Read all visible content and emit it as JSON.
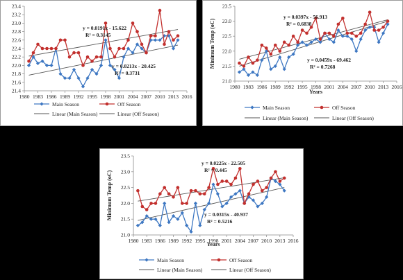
{
  "colors": {
    "main": "#3d77c2",
    "off": "#c2302e",
    "trend_main": "#555555",
    "trend_off": "#555555"
  },
  "chart_data": [
    {
      "type": "line",
      "title": "",
      "xlabel": "",
      "ylabel": "",
      "ylim": [
        21.4,
        23.4
      ],
      "ytick_step": 0.2,
      "xlim": [
        1980,
        2016
      ],
      "xticks": [
        1980,
        1983,
        1986,
        1989,
        1992,
        1995,
        1998,
        2001,
        2004,
        2007,
        2010,
        2013,
        2016
      ],
      "x": [
        1981,
        1982,
        1983,
        1984,
        1985,
        1986,
        1987,
        1988,
        1989,
        1990,
        1991,
        1992,
        1993,
        1994,
        1995,
        1996,
        1997,
        1998,
        1999,
        2000,
        2001,
        2002,
        2003,
        2004,
        2005,
        2006,
        2007,
        2008,
        2009,
        2010,
        2011,
        2012,
        2013,
        2014
      ],
      "series": [
        {
          "name": "Main Season",
          "values": [
            22.0,
            22.2,
            22.05,
            22.1,
            22.0,
            22.0,
            22.4,
            21.8,
            21.7,
            21.7,
            21.9,
            21.7,
            21.5,
            21.7,
            21.9,
            21.8,
            22.0,
            22.6,
            22.0,
            21.9,
            21.7,
            22.2,
            22.4,
            22.3,
            22.5,
            22.4,
            22.3,
            22.6,
            22.6,
            22.6,
            22.7,
            22.7,
            22.4,
            22.6
          ]
        },
        {
          "name": "Off Season",
          "values": [
            22.1,
            22.3,
            22.5,
            22.4,
            22.4,
            22.4,
            22.4,
            22.6,
            22.6,
            22.2,
            22.3,
            22.3,
            22.0,
            22.2,
            22.1,
            22.2,
            22.2,
            23.0,
            22.4,
            22.2,
            22.4,
            22.4,
            22.6,
            23.0,
            22.8,
            22.5,
            22.3,
            22.7,
            22.7,
            23.3,
            22.5,
            22.8,
            22.6,
            22.7
          ]
        }
      ],
      "trendlines": [
        {
          "name": "Linear (Main Season)",
          "equation": "y = 0.0213x - 20.425",
          "r2": "R² = 0.3731",
          "start": [
            1981,
            21.77
          ],
          "end": [
            2014,
            22.48
          ]
        },
        {
          "name": "Linear (Off Season)",
          "equation": "y = 0.0191x - 15.622",
          "r2": "R² = 0.3145",
          "start": [
            1981,
            22.22
          ],
          "end": [
            2014,
            22.85
          ]
        }
      ],
      "legend": [
        "Main Season",
        "Off Season",
        "Linear (Main Season)",
        "Linear (Off Season)"
      ]
    },
    {
      "type": "line",
      "title": "",
      "xlabel": "Years",
      "ylabel": "Minimum Temp (oC)",
      "ylim": [
        21,
        23.5
      ],
      "ytick_step": 0.5,
      "xlim": [
        1980,
        2016
      ],
      "xticks": [
        1980,
        1983,
        1986,
        1989,
        1992,
        1995,
        1998,
        2001,
        2004,
        2007,
        2010,
        2013,
        2016
      ],
      "x": [
        1981,
        1982,
        1983,
        1984,
        1985,
        1986,
        1987,
        1988,
        1989,
        1990,
        1991,
        1992,
        1993,
        1994,
        1995,
        1996,
        1997,
        1998,
        1999,
        2000,
        2001,
        2002,
        2003,
        2004,
        2005,
        2006,
        2007,
        2008,
        2009,
        2010,
        2011,
        2012,
        2013,
        2014
      ],
      "series": [
        {
          "name": "Main Season",
          "values": [
            21.3,
            21.4,
            21.2,
            21.3,
            21.2,
            21.7,
            22.0,
            21.4,
            21.5,
            21.8,
            21.4,
            21.8,
            21.9,
            22.2,
            22.3,
            22.2,
            22.3,
            22.4,
            22.3,
            22.6,
            22.4,
            22.3,
            22.7,
            22.5,
            22.5,
            22.4,
            22.0,
            22.4,
            22.7,
            22.8,
            22.8,
            22.3,
            22.6,
            22.9
          ]
        },
        {
          "name": "Off Season",
          "values": [
            21.6,
            21.5,
            21.8,
            21.6,
            21.7,
            22.2,
            22.1,
            21.9,
            22.2,
            22.0,
            22.3,
            22.2,
            22.5,
            22.3,
            22.7,
            22.6,
            22.8,
            23.1,
            22.4,
            22.6,
            22.6,
            22.5,
            22.9,
            23.1,
            22.6,
            22.6,
            22.5,
            22.6,
            22.9,
            23.3,
            22.7,
            22.7,
            22.8,
            23.0
          ]
        }
      ],
      "trendlines": [
        {
          "name": "Linear (Main Season)",
          "equation": "y = 0.0459x - 69.462",
          "r2": "R² = 0.7268",
          "start": [
            1981,
            21.5
          ],
          "end": [
            2014,
            23.0
          ]
        },
        {
          "name": "Linear (Off Season)",
          "equation": "y = 0.0397x - 56.913",
          "r2": "R² = 0.6838",
          "start": [
            1981,
            21.73
          ],
          "end": [
            2014,
            23.05
          ]
        }
      ],
      "legend": [
        "Main Season",
        "Off Season",
        "Linear (Main Season)",
        "Linear (Off Season)"
      ]
    },
    {
      "type": "line",
      "title": "",
      "xlabel": "Years",
      "ylabel": "Minimum Temp (oC)",
      "ylim": [
        21,
        23.5
      ],
      "ytick_step": 0.5,
      "xlim": [
        1980,
        2016
      ],
      "xticks": [
        1980,
        1983,
        1986,
        1989,
        1992,
        1995,
        1998,
        2001,
        2004,
        2007,
        2010,
        2013,
        2016
      ],
      "x": [
        1981,
        1982,
        1983,
        1984,
        1985,
        1986,
        1987,
        1988,
        1989,
        1990,
        1991,
        1992,
        1993,
        1994,
        1995,
        1996,
        1997,
        1998,
        1999,
        2000,
        2001,
        2002,
        2003,
        2004,
        2005,
        2006,
        2007,
        2008,
        2009,
        2010,
        2011,
        2012,
        2013,
        2014
      ],
      "series": [
        {
          "name": "Main Season",
          "values": [
            21.3,
            21.4,
            21.6,
            21.5,
            21.5,
            21.3,
            22.0,
            21.4,
            21.6,
            21.5,
            21.7,
            21.3,
            21.1,
            22.0,
            21.3,
            21.8,
            22.0,
            22.6,
            22.3,
            21.9,
            22.0,
            22.2,
            22.3,
            22.4,
            22.0,
            22.2,
            22.1,
            21.9,
            22.0,
            22.2,
            22.8,
            22.7,
            22.6,
            22.4
          ]
        },
        {
          "name": "Off Season",
          "values": [
            22.4,
            21.9,
            21.8,
            22.0,
            22.0,
            22.3,
            22.5,
            22.3,
            22.2,
            22.5,
            22.0,
            22.0,
            22.4,
            22.4,
            22.3,
            22.3,
            22.5,
            23.1,
            22.6,
            22.7,
            22.7,
            22.6,
            22.8,
            23.1,
            22.0,
            22.3,
            22.6,
            22.7,
            22.4,
            22.5,
            22.8,
            23.0,
            22.7,
            22.8
          ]
        }
      ],
      "trendlines": [
        {
          "name": "Linear (Main Season)",
          "equation": "y = 0.0315x - 40.937",
          "r2": "R² = 0.5216",
          "start": [
            1981,
            21.46
          ],
          "end": [
            2014,
            22.5
          ]
        },
        {
          "name": "Linear (Off Season)",
          "equation": "y = 0.0225x - 22.505",
          "r2": "R² = 0.445",
          "start": [
            1981,
            22.07
          ],
          "end": [
            2014,
            22.81
          ]
        }
      ],
      "legend": [
        "Main Season",
        "Off Season",
        "Linear (Main Season)",
        "Linear (Off Season)"
      ]
    }
  ]
}
